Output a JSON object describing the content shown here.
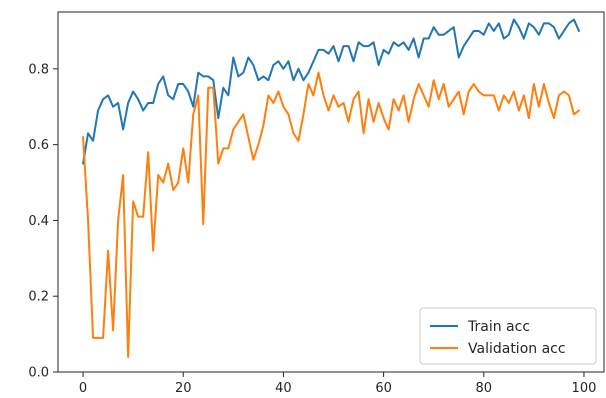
{
  "chart_data": {
    "type": "line",
    "title": "",
    "xlabel": "",
    "ylabel": "",
    "xlim": [
      -5,
      104
    ],
    "ylim": [
      0,
      0.95
    ],
    "xticks": [
      0,
      20,
      40,
      60,
      80,
      100
    ],
    "yticks": [
      0.0,
      0.2,
      0.4,
      0.6,
      0.8
    ],
    "xtick_labels": [
      "0",
      "20",
      "40",
      "60",
      "80",
      "100"
    ],
    "ytick_labels": [
      "0.0",
      "0.2",
      "0.4",
      "0.6",
      "0.8"
    ],
    "grid": false,
    "legend": "lower-right",
    "series": [
      {
        "name": "Train acc",
        "color": "#1f77b4",
        "x": [
          0,
          1,
          2,
          3,
          4,
          5,
          6,
          7,
          8,
          9,
          10,
          11,
          12,
          13,
          14,
          15,
          16,
          17,
          18,
          19,
          20,
          21,
          22,
          23,
          24,
          25,
          26,
          27,
          28,
          29,
          30,
          31,
          32,
          33,
          34,
          35,
          36,
          37,
          38,
          39,
          40,
          41,
          42,
          43,
          44,
          45,
          46,
          47,
          48,
          49,
          50,
          51,
          52,
          53,
          54,
          55,
          56,
          57,
          58,
          59,
          60,
          61,
          62,
          63,
          64,
          65,
          66,
          67,
          68,
          69,
          70,
          71,
          72,
          73,
          74,
          75,
          76,
          77,
          78,
          79,
          80,
          81,
          82,
          83,
          84,
          85,
          86,
          87,
          88,
          89,
          90,
          91,
          92,
          93,
          94,
          95,
          96,
          97,
          98,
          99
        ],
        "values": [
          0.55,
          0.63,
          0.61,
          0.69,
          0.72,
          0.73,
          0.7,
          0.71,
          0.64,
          0.71,
          0.74,
          0.72,
          0.69,
          0.71,
          0.71,
          0.76,
          0.78,
          0.73,
          0.72,
          0.76,
          0.76,
          0.74,
          0.7,
          0.79,
          0.78,
          0.78,
          0.77,
          0.67,
          0.75,
          0.73,
          0.83,
          0.78,
          0.79,
          0.83,
          0.81,
          0.77,
          0.78,
          0.77,
          0.81,
          0.82,
          0.8,
          0.82,
          0.77,
          0.8,
          0.77,
          0.79,
          0.82,
          0.85,
          0.85,
          0.84,
          0.86,
          0.82,
          0.86,
          0.86,
          0.82,
          0.87,
          0.86,
          0.86,
          0.87,
          0.81,
          0.85,
          0.84,
          0.87,
          0.86,
          0.87,
          0.85,
          0.88,
          0.83,
          0.88,
          0.88,
          0.91,
          0.89,
          0.89,
          0.9,
          0.91,
          0.83,
          0.86,
          0.88,
          0.9,
          0.9,
          0.89,
          0.92,
          0.9,
          0.92,
          0.88,
          0.89,
          0.93,
          0.91,
          0.88,
          0.92,
          0.91,
          0.89,
          0.92,
          0.92,
          0.91,
          0.88,
          0.9,
          0.92,
          0.93,
          0.9
        ]
      },
      {
        "name": "Validation acc",
        "color": "#ff7f0e",
        "x": [
          0,
          1,
          2,
          3,
          4,
          5,
          6,
          7,
          8,
          9,
          10,
          11,
          12,
          13,
          14,
          15,
          16,
          17,
          18,
          19,
          20,
          21,
          22,
          23,
          24,
          25,
          26,
          27,
          28,
          29,
          30,
          31,
          32,
          33,
          34,
          35,
          36,
          37,
          38,
          39,
          40,
          41,
          42,
          43,
          44,
          45,
          46,
          47,
          48,
          49,
          50,
          51,
          52,
          53,
          54,
          55,
          56,
          57,
          58,
          59,
          60,
          61,
          62,
          63,
          64,
          65,
          66,
          67,
          68,
          69,
          70,
          71,
          72,
          73,
          74,
          75,
          76,
          77,
          78,
          79,
          80,
          81,
          82,
          83,
          84,
          85,
          86,
          87,
          88,
          89,
          90,
          91,
          92,
          93,
          94,
          95,
          96,
          97,
          98,
          99
        ],
        "values": [
          0.62,
          0.4,
          0.09,
          0.09,
          0.09,
          0.32,
          0.11,
          0.4,
          0.52,
          0.04,
          0.45,
          0.41,
          0.41,
          0.58,
          0.32,
          0.52,
          0.5,
          0.55,
          0.48,
          0.5,
          0.59,
          0.5,
          0.68,
          0.73,
          0.39,
          0.75,
          0.75,
          0.55,
          0.59,
          0.59,
          0.64,
          0.66,
          0.68,
          0.62,
          0.56,
          0.6,
          0.65,
          0.73,
          0.71,
          0.74,
          0.7,
          0.68,
          0.63,
          0.61,
          0.68,
          0.76,
          0.73,
          0.79,
          0.73,
          0.69,
          0.73,
          0.7,
          0.71,
          0.66,
          0.72,
          0.74,
          0.63,
          0.72,
          0.66,
          0.71,
          0.67,
          0.64,
          0.72,
          0.69,
          0.73,
          0.66,
          0.72,
          0.76,
          0.73,
          0.7,
          0.77,
          0.72,
          0.76,
          0.7,
          0.72,
          0.74,
          0.68,
          0.74,
          0.76,
          0.74,
          0.73,
          0.73,
          0.73,
          0.69,
          0.73,
          0.71,
          0.74,
          0.69,
          0.73,
          0.67,
          0.76,
          0.7,
          0.76,
          0.71,
          0.67,
          0.73,
          0.74,
          0.73,
          0.68,
          0.69
        ]
      }
    ]
  }
}
